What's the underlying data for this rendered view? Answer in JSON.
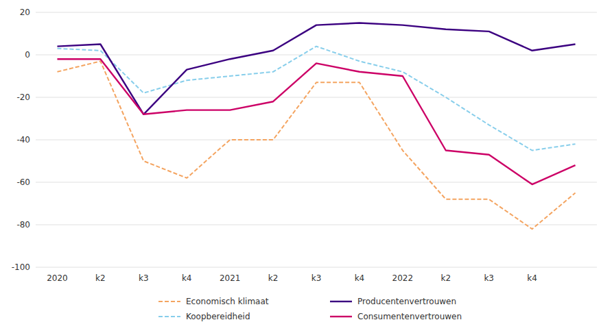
{
  "chart_data": {
    "type": "line",
    "categories": [
      "2020",
      "k2",
      "k3",
      "k4",
      "2021",
      "k2",
      "k3",
      "k4",
      "2022",
      "k2",
      "k3",
      "k4",
      null
    ],
    "series": [
      {
        "name": "Economisch klimaat",
        "color": "#F4A460",
        "line_style": "dashed",
        "values": [
          -8,
          -3,
          -50,
          -58,
          -40,
          -40,
          -13,
          -13,
          -45,
          -68,
          -68,
          -82,
          -65
        ]
      },
      {
        "name": "Koopbereidheid",
        "color": "#87CEEB",
        "line_style": "dashed",
        "values": [
          3,
          2,
          -18,
          -12,
          -10,
          -8,
          4,
          -3,
          -8,
          -20,
          -33,
          -45,
          -42
        ]
      },
      {
        "name": "Producentenvertrouwen",
        "color": "#3B0080",
        "line_style": "solid",
        "values": [
          4,
          5,
          -28,
          -7,
          -2,
          2,
          14,
          15,
          14,
          12,
          11,
          2,
          5
        ]
      },
      {
        "name": "Consumentenvertrouwen",
        "color": "#CC0066",
        "line_style": "solid",
        "values": [
          -2,
          -2,
          -28,
          -26,
          -26,
          -22,
          -4,
          -8,
          -10,
          -45,
          -47,
          -61,
          -52
        ]
      }
    ],
    "ylim": [
      -100,
      20
    ],
    "yticks": [
      -100,
      -80,
      -60,
      -40,
      -20,
      0,
      20
    ],
    "grid": true,
    "legend": "bottom"
  }
}
